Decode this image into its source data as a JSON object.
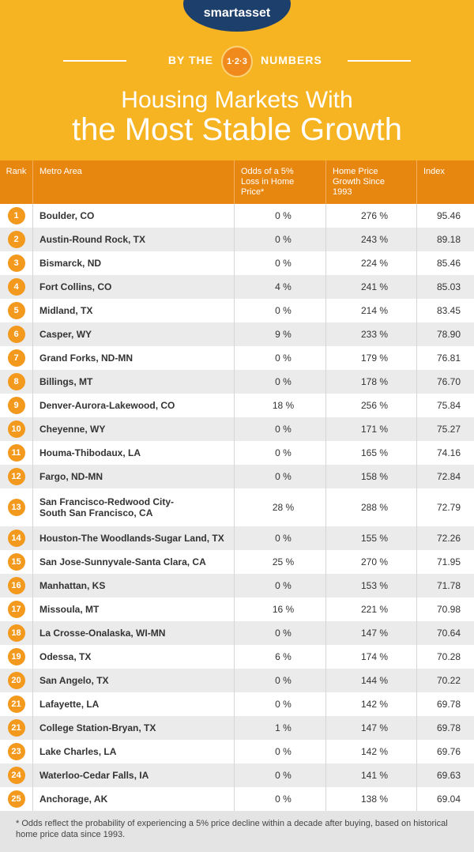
{
  "header": {
    "logo": "smartasset",
    "banner_left": "BY THE",
    "banner_badge": "1·2·3",
    "banner_right": "NUMBERS",
    "title_line1": "Housing Markets With",
    "title_line2": "the Most Stable Growth"
  },
  "table": {
    "columns": [
      "Rank",
      "Metro Area",
      "Odds of a 5%\nLoss in Home\nPrice*",
      "Home Price\nGrowth Since\n1993",
      "Index"
    ],
    "rows": [
      [
        "1",
        "Boulder, CO",
        "0 %",
        "276 %",
        "95.46"
      ],
      [
        "2",
        "Austin-Round Rock, TX",
        "0 %",
        "243 %",
        "89.18"
      ],
      [
        "3",
        "Bismarck, ND",
        "0 %",
        "224 %",
        "85.46"
      ],
      [
        "4",
        "Fort Collins, CO",
        "4 %",
        "241 %",
        "85.03"
      ],
      [
        "5",
        "Midland, TX",
        "0 %",
        "214 %",
        "83.45"
      ],
      [
        "6",
        "Casper, WY",
        "9 %",
        "233 %",
        "78.90"
      ],
      [
        "7",
        "Grand Forks, ND-MN",
        "0 %",
        "179 %",
        "76.81"
      ],
      [
        "8",
        "Billings, MT",
        "0 %",
        "178 %",
        "76.70"
      ],
      [
        "9",
        "Denver-Aurora-Lakewood, CO",
        "18 %",
        "256 %",
        "75.84"
      ],
      [
        "10",
        "Cheyenne, WY",
        "0 %",
        "171 %",
        "75.27"
      ],
      [
        "11",
        "Houma-Thibodaux, LA",
        "0 %",
        "165 %",
        "74.16"
      ],
      [
        "12",
        "Fargo, ND-MN",
        "0 %",
        "158 %",
        "72.84"
      ],
      [
        "13",
        "San Francisco-Redwood City-\nSouth San Francisco, CA",
        "28 %",
        "288 %",
        "72.79"
      ],
      [
        "14",
        "Houston-The Woodlands-Sugar Land, TX",
        "0 %",
        "155 %",
        "72.26"
      ],
      [
        "15",
        "San Jose-Sunnyvale-Santa Clara, CA",
        "25 %",
        "270 %",
        "71.95"
      ],
      [
        "16",
        "Manhattan, KS",
        "0 %",
        "153 %",
        "71.78"
      ],
      [
        "17",
        "Missoula, MT",
        "16 %",
        "221 %",
        "70.98"
      ],
      [
        "18",
        "La Crosse-Onalaska, WI-MN",
        "0 %",
        "147 %",
        "70.64"
      ],
      [
        "19",
        "Odessa, TX",
        "6 %",
        "174 %",
        "70.28"
      ],
      [
        "20",
        "San Angelo, TX",
        "0 %",
        "144 %",
        "70.22"
      ],
      [
        "21",
        "Lafayette, LA",
        "0 %",
        "142 %",
        "69.78"
      ],
      [
        "21",
        "College Station-Bryan, TX",
        "1 %",
        "147 %",
        "69.78"
      ],
      [
        "23",
        "Lake Charles, LA",
        "0 %",
        "142 %",
        "69.76"
      ],
      [
        "24",
        "Waterloo-Cedar Falls, IA",
        "0 %",
        "141 %",
        "69.63"
      ],
      [
        "25",
        "Anchorage, AK",
        "0 %",
        "138 %",
        "69.04"
      ]
    ]
  },
  "footnote": "* Odds reflect the probability of experiencing a 5% price decline within a decade after buying, based on historical home price data since 1993."
}
